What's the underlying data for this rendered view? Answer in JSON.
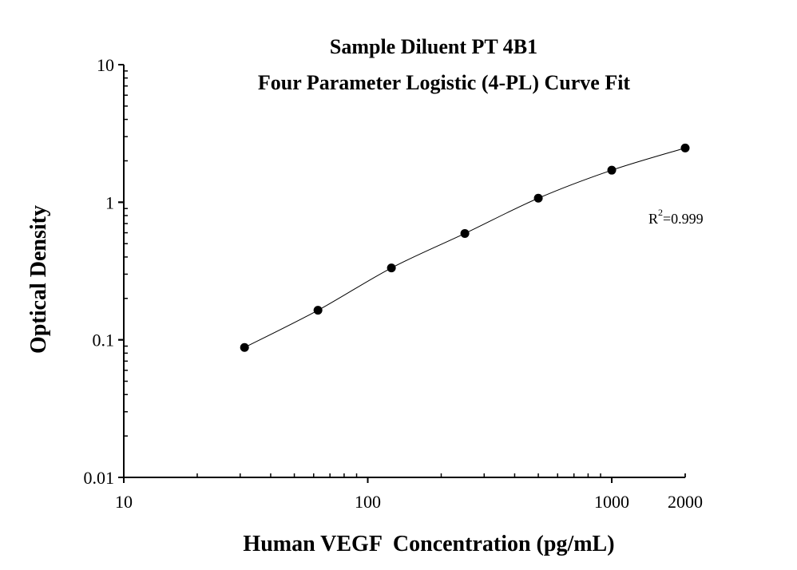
{
  "chart_data": {
    "type": "scatter",
    "title": "Sample Diluent PT 4B1",
    "subtitle": "Four Parameter Logistic (4-PL) Curve Fit",
    "xlabel": "Human VEGF  Concentration (pg/mL)",
    "ylabel": "Optical Density",
    "x_scale": "log",
    "y_scale": "log",
    "xlim": [
      10,
      2000
    ],
    "ylim": [
      0.01,
      10
    ],
    "x_ticks": [
      "10",
      "100",
      "1000",
      "2000"
    ],
    "x_tick_values": [
      10,
      100,
      1000,
      2000
    ],
    "y_ticks": [
      "0.01",
      "0.1",
      "1",
      "10"
    ],
    "y_tick_values": [
      0.01,
      0.1,
      1,
      10
    ],
    "grid": false,
    "annotation": {
      "r2_label": "R",
      "r2_sup": "2",
      "r2_value": "=0.999"
    },
    "series": [
      {
        "x": [
          31.25,
          62.5,
          125,
          250,
          500,
          1000,
          2000
        ],
        "y": [
          0.088,
          0.164,
          0.333,
          0.593,
          1.07,
          1.71,
          2.48
        ],
        "marker": "filled-circle",
        "fit": "4-PL",
        "color": "#000000"
      }
    ]
  }
}
